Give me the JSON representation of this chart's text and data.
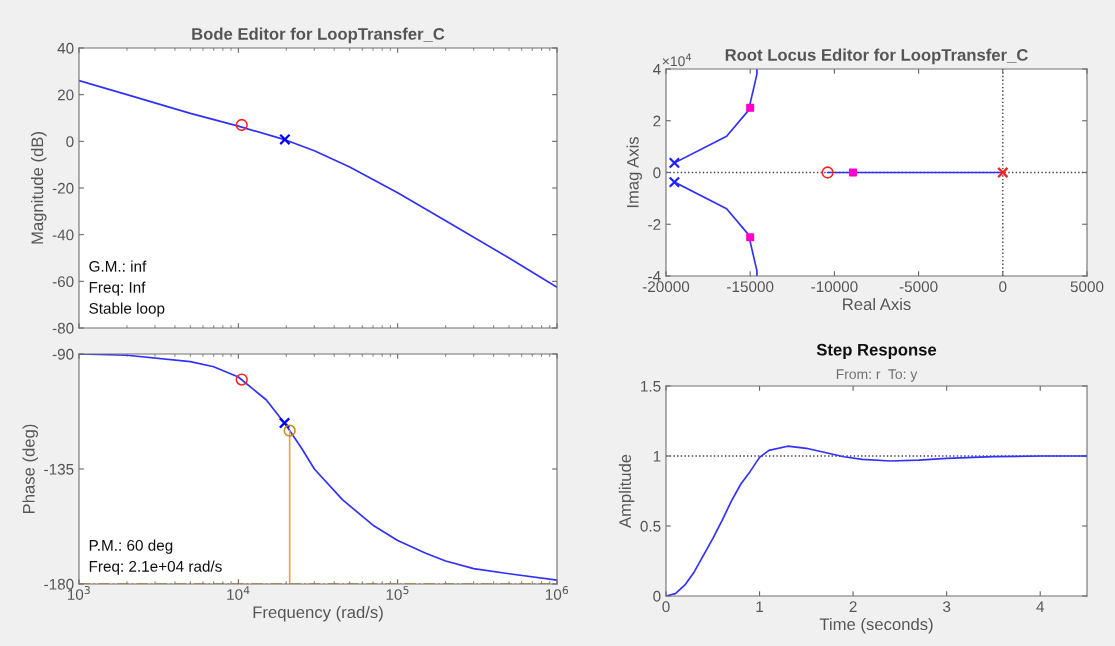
{
  "chart_data": [
    {
      "type": "line",
      "title": "Bode Editor for LoopTransfer_C",
      "ylabel": "Magnitude (dB)",
      "log": "x",
      "tick_labels": "y",
      "xlim": [
        1000,
        1000000
      ],
      "xticks": [
        {
          "value": 1000,
          "label": null
        },
        {
          "value": 10000,
          "label": null
        },
        {
          "value": 100000,
          "label": null
        },
        {
          "value": 1000000,
          "label": null
        }
      ],
      "ylim": [
        -80,
        40
      ],
      "yticks": [
        -80,
        -60,
        -40,
        -20,
        0,
        20,
        40
      ],
      "annotations": [
        "G.M.: inf",
        "Freq: Inf",
        "Stable loop"
      ],
      "series": [
        {
          "color": "#3030ff",
          "x": [
            1000,
            2000,
            5000,
            10000,
            20000,
            30000,
            50000,
            100000,
            200000,
            500000,
            1000000
          ],
          "values": [
            26,
            20,
            12,
            6.5,
            0.5,
            -4,
            -11,
            -22,
            -34,
            -50,
            -62.5
          ]
        },
        {
          "type": "scatter",
          "marker": "circle",
          "color": "#ff2020",
          "x": [
            10500
          ],
          "values": [
            7
          ]
        },
        {
          "type": "scatter",
          "marker": "cross",
          "color": "#0000ff",
          "x": [
            19600
          ],
          "values": [
            0.8
          ]
        }
      ]
    },
    {
      "type": "line",
      "xlabel": "Frequency (rad/s)",
      "ylabel": "Phase (deg)",
      "log": "x",
      "xlim": [
        1000,
        1000000
      ],
      "xticks": [
        {
          "value": 1000,
          "label": "10$^{3}$"
        },
        {
          "value": 10000,
          "label": "10$^{4}$"
        },
        {
          "value": 100000,
          "label": "10$^{5}$"
        },
        {
          "value": 1000000,
          "label": "10$^{6}$"
        }
      ],
      "ylim": [
        -180,
        -90
      ],
      "yticks": [
        -180,
        -135,
        -90
      ],
      "annotations": [
        "P.M.: 60 deg",
        "Freq: 2.1e+04 rad/s"
      ],
      "ref_lines": [
        {
          "axis": "y",
          "value": -180,
          "color": "#d9a441",
          "line_style": "dashdot"
        }
      ],
      "series": [
        {
          "color": "#3030ff",
          "x": [
            1000,
            2000,
            5000,
            7000,
            10000,
            15000,
            20000,
            25000,
            30000,
            45000,
            70000,
            100000,
            150000,
            200000,
            300000,
            500000,
            1000000
          ],
          "values": [
            -90,
            -90.5,
            -93,
            -95,
            -99,
            -108,
            -118,
            -127,
            -135,
            -147,
            -157,
            -163,
            -168,
            -171,
            -174,
            -176,
            -178.5
          ]
        },
        {
          "type": "scatter",
          "marker": "circle",
          "color": "#ff2020",
          "x": [
            10500
          ],
          "values": [
            -100
          ]
        },
        {
          "type": "scatter",
          "marker": "cross",
          "color": "#0000ff",
          "x": [
            19500
          ],
          "values": [
            -117
          ]
        },
        {
          "color": "#e0a84a",
          "x": [
            21000,
            21000
          ],
          "values": [
            -180,
            -120
          ]
        },
        {
          "type": "scatter",
          "marker": "circle",
          "color": "#c8890f",
          "x": [
            21000
          ],
          "values": [
            -120
          ]
        }
      ]
    },
    {
      "type": "line",
      "title": "Root Locus Editor for LoopTransfer_C",
      "xlabel": "Real Axis",
      "ylabel": "Imag Axis",
      "xlim": [
        -20000,
        5000
      ],
      "xticks": [
        -20000,
        -15000,
        -10000,
        -5000,
        0,
        5000
      ],
      "ylim": [
        -4,
        4
      ],
      "yticks": [
        -4,
        -2,
        0,
        2,
        4
      ],
      "annotations": [
        "×10$^{4}$"
      ],
      "ref_lines": [
        {
          "axis": "x",
          "value": 0,
          "color": "#404040",
          "line_style": "dotted"
        },
        {
          "axis": "y",
          "value": 0,
          "color": "#404040",
          "line_style": "dotted"
        }
      ],
      "series": [
        {
          "color": "#3030ff",
          "x": [
            -19500,
            -16400,
            -15100,
            -14600,
            -14600
          ],
          "values": [
            0.37,
            1.4,
            2.4,
            3.8,
            4
          ]
        },
        {
          "color": "#3030ff",
          "x": [
            -19500,
            -16400,
            -15100,
            -14600,
            -14600
          ],
          "values": [
            -0.37,
            -1.4,
            -2.4,
            -3.8,
            -4
          ]
        },
        {
          "color": "#3030ff",
          "x": [
            -10400,
            0
          ],
          "values": [
            0,
            0
          ]
        },
        {
          "type": "scatter",
          "marker": "cross",
          "color": "#2020ff",
          "x": [
            -19500,
            -19500
          ],
          "values": [
            0.37,
            -0.37
          ]
        },
        {
          "type": "scatter",
          "marker": "circle",
          "color": "#ff2020",
          "x": [
            -10400
          ],
          "values": [
            0
          ]
        },
        {
          "type": "scatter",
          "marker": "cross",
          "color": "#ff2020",
          "x": [
            0
          ],
          "values": [
            0
          ]
        },
        {
          "type": "scatter",
          "marker": "square",
          "color": "#ff00cc",
          "x": [
            -15000,
            -15000,
            -8900
          ],
          "values": [
            2.5,
            -2.5,
            0
          ]
        }
      ]
    },
    {
      "type": "line",
      "title": "Step Response",
      "subtitle": "From: r  To: y",
      "xlabel": "Time (seconds)",
      "ylabel": "Amplitude",
      "xlim": [
        0,
        4.5
      ],
      "xticks": [
        0,
        1,
        2,
        3,
        4
      ],
      "ylim": [
        0,
        1.5
      ],
      "yticks": [
        0,
        0.5,
        1,
        1.5
      ],
      "ref_lines": [
        {
          "axis": "y",
          "value": 1,
          "color": "#404040",
          "line_style": "dotted"
        }
      ],
      "series": [
        {
          "color": "#3030ff",
          "x": [
            0,
            0.1,
            0.2,
            0.3,
            0.4,
            0.5,
            0.6,
            0.7,
            0.8,
            0.9,
            1.0,
            1.1,
            1.3,
            1.5,
            1.7,
            1.9,
            2.1,
            2.4,
            2.7,
            3.0,
            3.5,
            4.0,
            4.5
          ],
          "values": [
            0,
            0.017,
            0.077,
            0.17,
            0.29,
            0.41,
            0.54,
            0.68,
            0.8,
            0.89,
            0.99,
            1.04,
            1.07,
            1.055,
            1.025,
            0.995,
            0.976,
            0.964,
            0.971,
            0.983,
            0.995,
            1.0,
            1.0
          ]
        }
      ]
    }
  ]
}
